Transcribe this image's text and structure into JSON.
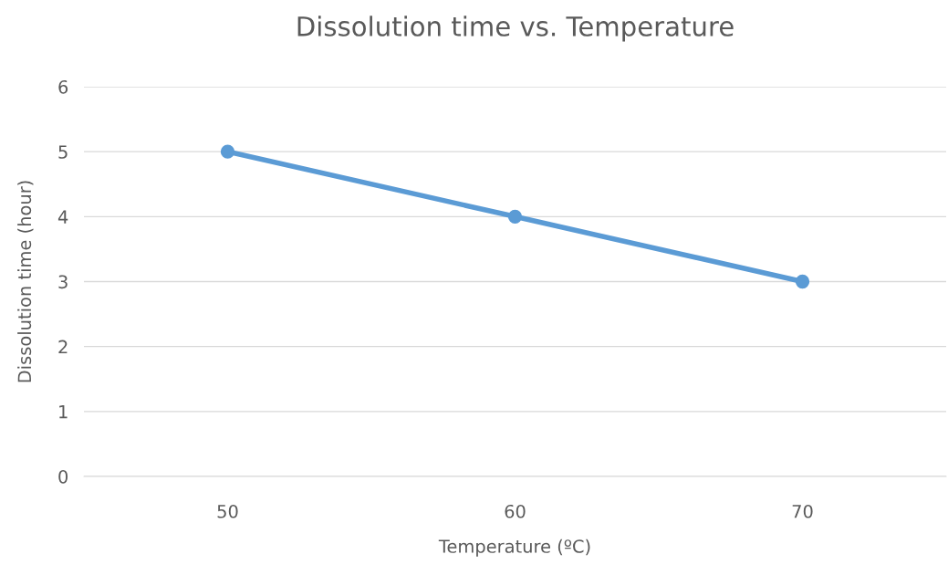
{
  "chart_data": {
    "type": "line",
    "title": "Dissolution time vs. Temperature",
    "xlabel": "Temperature (ºC)",
    "ylabel": "Dissolution time (hour)",
    "categories": [
      "50",
      "60",
      "70"
    ],
    "series": [
      {
        "color": "#5b9bd5",
        "values": [
          5,
          4,
          3
        ]
      }
    ],
    "ylim": [
      0,
      6
    ],
    "yticks": [
      0,
      1,
      2,
      3,
      4,
      5,
      6
    ],
    "grid": "y",
    "marker": "circle",
    "line_style": "solid"
  }
}
